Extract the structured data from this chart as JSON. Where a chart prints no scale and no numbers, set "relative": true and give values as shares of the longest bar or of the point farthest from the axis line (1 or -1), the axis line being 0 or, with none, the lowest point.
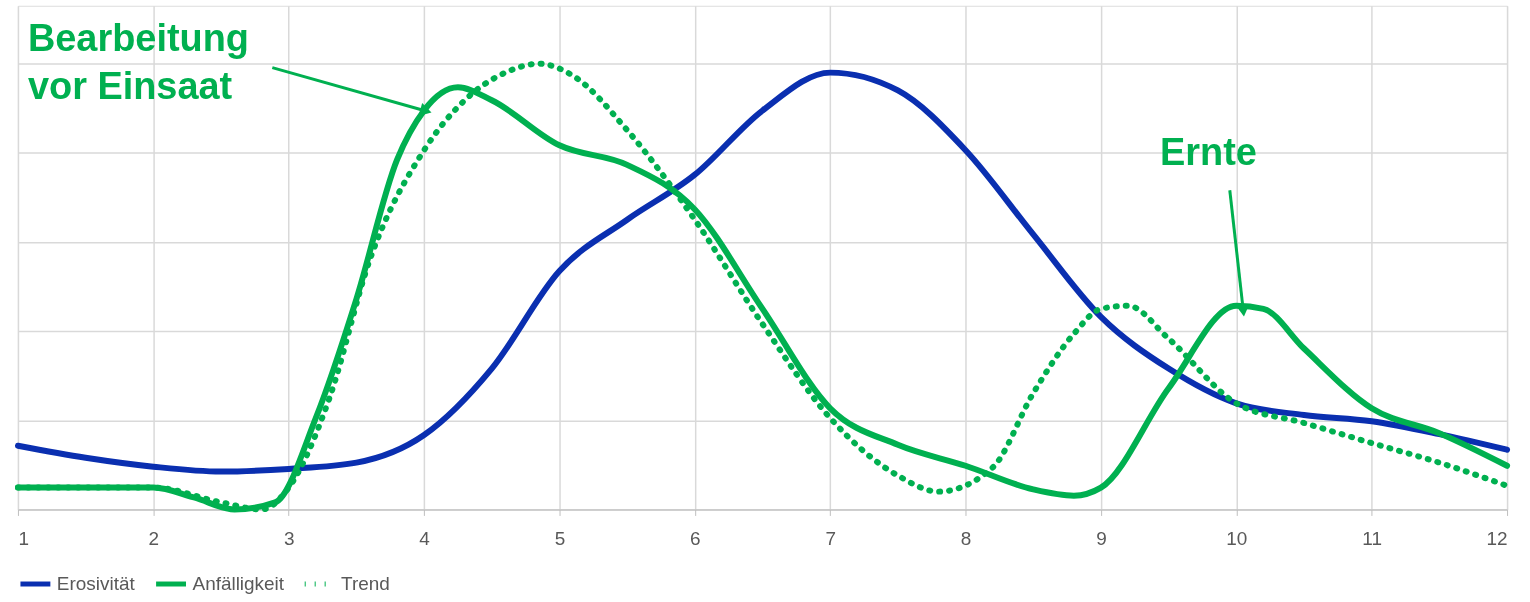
{
  "chart_data": {
    "type": "line",
    "relative": true,
    "xlim": [
      1,
      12
    ],
    "xticks": [
      1,
      2,
      3,
      4,
      5,
      6,
      7,
      8,
      9,
      10,
      11,
      12
    ],
    "grid": true,
    "legend": "bottom",
    "marker": "none",
    "annotations": [
      {
        "text": "Bearbeitung vor Einsaat",
        "x": 4,
        "y": 0.895
      },
      {
        "text": "Ernte",
        "x": 10.05,
        "y": 0.45
      }
    ],
    "series": [
      {
        "name": "Erosivität",
        "color": "#0a2fb0",
        "line_style": "solid",
        "x": [
          1,
          1.5,
          2,
          2.5,
          3,
          3.5,
          4,
          4.5,
          5,
          5.5,
          6,
          6.5,
          7,
          7.5,
          8,
          8.5,
          9,
          9.5,
          10,
          10.5,
          11,
          11.5,
          12
        ],
        "values": [
          0.143,
          0.116,
          0.096,
          0.085,
          0.091,
          0.105,
          0.167,
          0.316,
          0.535,
          0.65,
          0.751,
          0.895,
          0.98,
          0.94,
          0.806,
          0.617,
          0.432,
          0.316,
          0.238,
          0.212,
          0.198,
          0.169,
          0.134
        ]
      },
      {
        "name": "Anfälligkeit",
        "color": "#00b050",
        "line_style": "solid",
        "x": [
          1,
          1.5,
          2,
          2.3,
          2.6,
          2.9,
          3.2,
          3.5,
          3.8,
          4,
          4.25,
          4.5,
          5,
          5.5,
          6,
          6.5,
          7,
          7.5,
          8,
          8.5,
          8.8,
          9,
          9.5,
          10,
          10.2,
          10.5,
          11,
          11.5,
          12
        ],
        "values": [
          0.049,
          0.049,
          0.049,
          0.027,
          0,
          0.016,
          0.205,
          0.472,
          0.784,
          0.895,
          0.947,
          0.918,
          0.817,
          0.773,
          0.673,
          0.45,
          0.227,
          0.145,
          0.098,
          0.045,
          0.031,
          0.049,
          0.272,
          0.457,
          0.45,
          0.361,
          0.227,
          0.171,
          0.098
        ]
      },
      {
        "name": "Trend",
        "color": "#00b050",
        "line_style": "dotted",
        "x": [
          1,
          2,
          2.5,
          2.8,
          3,
          3.3,
          3.6,
          4,
          4.3,
          4.6,
          4.85,
          5.1,
          5.5,
          6,
          6.5,
          7,
          7.5,
          7.8,
          8.2,
          8.5,
          8.8,
          9,
          9.2,
          9.5,
          10,
          10.5,
          11,
          11.5,
          12
        ],
        "values": [
          0.049,
          0.049,
          0.016,
          0,
          0.049,
          0.249,
          0.561,
          0.806,
          0.918,
          0.98,
          1.0,
          0.973,
          0.851,
          0.65,
          0.416,
          0.205,
          0.076,
          0.04,
          0.094,
          0.261,
          0.394,
          0.45,
          0.457,
          0.383,
          0.238,
          0.194,
          0.149,
          0.105,
          0.053
        ]
      }
    ]
  }
}
